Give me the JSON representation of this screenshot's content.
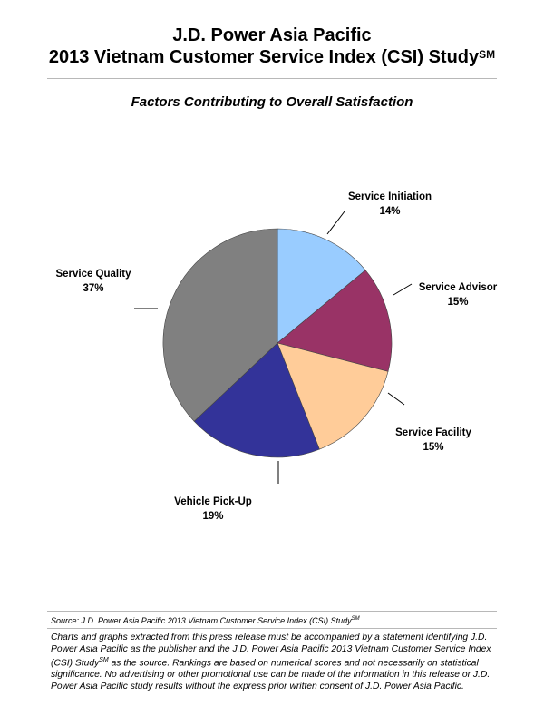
{
  "header": {
    "line1": "J.D. Power Asia Pacific",
    "line2": "2013 Vietnam Customer Service Index (CSI) Study",
    "line2_superscript": "SM"
  },
  "chart_data": {
    "type": "pie",
    "title": "Factors Contributing to Overall Satisfaction",
    "start_angle_deg": 0,
    "direction": "clockwise",
    "slices": [
      {
        "label": "Service Initiation",
        "value": 14,
        "value_label": "14%",
        "color": "#99ccff"
      },
      {
        "label": "Service Advisor",
        "value": 15,
        "value_label": "15%",
        "color": "#993366"
      },
      {
        "label": "Service Facility",
        "value": 15,
        "value_label": "15%",
        "color": "#ffcc99"
      },
      {
        "label": "Vehicle Pick-Up",
        "value": 19,
        "value_label": "19%",
        "color": "#333399"
      },
      {
        "label": "Service Quality",
        "value": 37,
        "value_label": "37%",
        "color": "#808080"
      }
    ]
  },
  "footer": {
    "source_text": "Source: J.D. Power Asia Pacific 2013 Vietnam Customer Service Index (CSI) Study",
    "source_superscript": "SM",
    "disclaimer_part1": "Charts and graphs extracted from this press release must be accompanied by a statement identifying J.D. Power Asia Pacific as the publisher and the J.D. Power Asia Pacific 2013 Vietnam Customer Service Index (CSI) Study",
    "disclaimer_superscript": "SM",
    "disclaimer_part2": " as the source. Rankings are based on numerical scores and not necessarily on statistical significance. No advertising or other promotional use can be made of the information in this release or J.D. Power Asia Pacific study results without the express prior written consent of J.D. Power Asia Pacific."
  }
}
